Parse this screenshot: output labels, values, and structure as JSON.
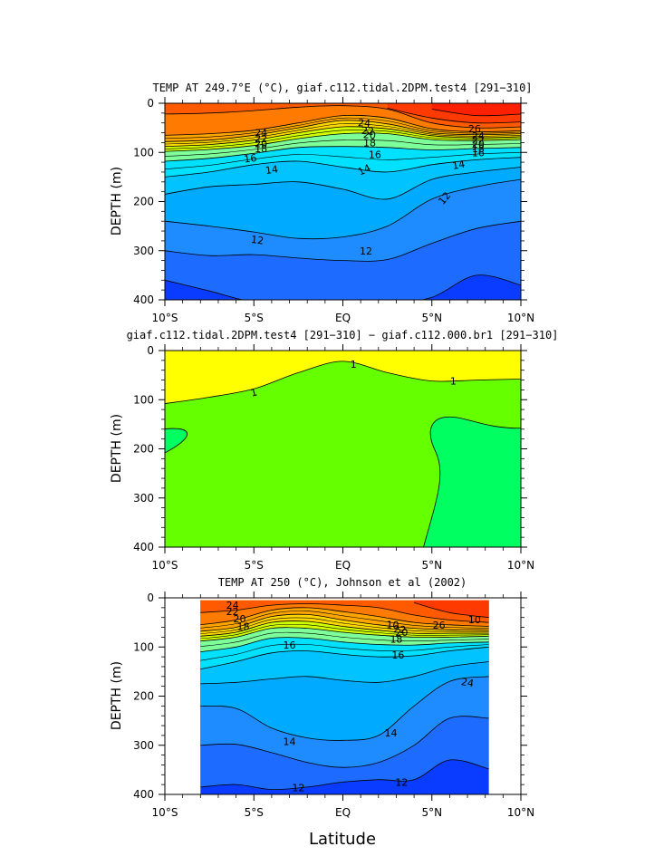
{
  "x_axis_label": "Latitude",
  "chart_data": [
    {
      "type": "heatmap",
      "title": "TEMP AT 249.7°E (°C), giaf.c112.tidal.2DPM.test4 [291−310]",
      "xlabel": "",
      "ylabel": "DEPTH (m)",
      "xlim": [
        -10,
        10
      ],
      "ylim": [
        400,
        0
      ],
      "x_ticks": [
        -10,
        -5,
        0,
        5,
        10
      ],
      "x_tick_labels": [
        "10°S",
        "5°S",
        "EQ",
        "5°N",
        "10°N"
      ],
      "y_ticks": [
        0,
        100,
        200,
        300,
        400
      ],
      "y_tick_labels": [
        "0",
        "100",
        "200",
        "300",
        "400"
      ],
      "grid": false,
      "legend": "none",
      "data_extent": [
        -10,
        10
      ],
      "levels": [
        10,
        11,
        12,
        13,
        14,
        15,
        16,
        17,
        18,
        19,
        20,
        21,
        22,
        23,
        24,
        25,
        26,
        27
      ],
      "colors": [
        "#0a3cff",
        "#1e6bff",
        "#1e8cff",
        "#00aaff",
        "#00c3ff",
        "#00e0ff",
        "#3cf0ff",
        "#7dff9a",
        "#a0ff3c",
        "#d2ff00",
        "#ffff00",
        "#ffd700",
        "#ffc000",
        "#ffa500",
        "#ff9020",
        "#ff7a00",
        "#ff5a00",
        "#ff3a00",
        "#ff2000"
      ],
      "x": [
        -10,
        -7.5,
        -5,
        -2.5,
        0,
        2.5,
        5,
        7.5,
        10
      ],
      "isotherm_depths": [
        {
          "t": 27,
          "depth": [
            null,
            null,
            null,
            null,
            null,
            null,
            12,
            25,
            22
          ]
        },
        {
          "t": 26,
          "depth": [
            null,
            null,
            null,
            null,
            null,
            10,
            30,
            40,
            38
          ]
        },
        {
          "t": 25,
          "depth": [
            22,
            20,
            15,
            8,
            5,
            12,
            40,
            50,
            48
          ]
        },
        {
          "t": 24,
          "depth": [
            65,
            62,
            55,
            40,
            25,
            30,
            52,
            58,
            56
          ]
        },
        {
          "t": 22,
          "depth": [
            78,
            75,
            65,
            50,
            35,
            42,
            60,
            64,
            62
          ]
        },
        {
          "t": 20,
          "depth": [
            88,
            84,
            75,
            60,
            48,
            52,
            66,
            70,
            68
          ]
        },
        {
          "t": 18,
          "depth": [
            98,
            94,
            86,
            72,
            62,
            62,
            74,
            76,
            74
          ]
        },
        {
          "t": 16,
          "depth": [
            118,
            112,
            102,
            90,
            88,
            90,
            95,
            92,
            90
          ]
        },
        {
          "t": 14,
          "depth": [
            150,
            140,
            125,
            118,
            130,
            140,
            125,
            115,
            110
          ]
        },
        {
          "t": 13,
          "depth": [
            185,
            170,
            165,
            160,
            175,
            195,
            155,
            140,
            130
          ]
        },
        {
          "t": 12,
          "depth": [
            240,
            250,
            262,
            275,
            272,
            250,
            195,
            170,
            155
          ]
        },
        {
          "t": 11,
          "depth": [
            300,
            310,
            308,
            315,
            320,
            318,
            285,
            255,
            240
          ]
        },
        {
          "t": 10,
          "depth": [
            360,
            382,
            405,
            410,
            410,
            408,
            395,
            350,
            370
          ]
        }
      ],
      "contour_labels": [
        "24",
        "22",
        "20",
        "18",
        "16",
        "14",
        "12",
        "24",
        "22",
        "20",
        "18",
        "16",
        "14",
        "12",
        "26",
        "24",
        "22",
        "20",
        "18",
        "16",
        "14",
        "12"
      ]
    },
    {
      "type": "heatmap",
      "title": "giaf.c112.tidal.2DPM.test4 [291−310] − giaf.c112.000.br1 [291−310]",
      "xlabel": "",
      "ylabel": "DEPTH (m)",
      "xlim": [
        -10,
        10
      ],
      "ylim": [
        400,
        0
      ],
      "x_ticks": [
        -10,
        -5,
        0,
        5,
        10
      ],
      "x_tick_labels": [
        "10°S",
        "5°S",
        "EQ",
        "5°N",
        "10°N"
      ],
      "y_ticks": [
        0,
        100,
        200,
        300,
        400
      ],
      "y_tick_labels": [
        "0",
        "100",
        "200",
        "300",
        "400"
      ],
      "grid": false,
      "legend": "none",
      "data_extent": [
        -10,
        10
      ],
      "levels": [
        -1,
        0,
        1
      ],
      "colors": [
        "#00ff60",
        "#66ff00",
        "#ffff00"
      ],
      "x": [
        -10,
        -7.5,
        -5,
        -2.5,
        0,
        2.5,
        5,
        7.5,
        10
      ],
      "diff_plus1_depth": [
        108,
        95,
        78,
        45,
        22,
        45,
        62,
        60,
        58
      ],
      "diff_minus1_region": {
        "left_lobe": {
          "depth_top": 160,
          "depth_bottom": 210,
          "lat_extent": -8.5
        },
        "right_region": {
          "lat_surface_boundary": [
            4.5,
            5.3,
            6.5,
            10
          ],
          "depth_top": 135
        }
      },
      "contour_labels": [
        "1",
        "1",
        "1"
      ]
    },
    {
      "type": "heatmap",
      "title": "TEMP AT 250 (°C), Johnson et al (2002)",
      "xlabel": "Latitude",
      "ylabel": "DEPTH (m)",
      "xlim": [
        -10,
        10
      ],
      "ylim": [
        400,
        0
      ],
      "x_ticks": [
        -10,
        -5,
        0,
        5,
        10
      ],
      "x_tick_labels": [
        "10°S",
        "5°S",
        "EQ",
        "5°N",
        "10°N"
      ],
      "y_ticks": [
        0,
        100,
        200,
        300,
        400
      ],
      "y_tick_labels": [
        "0",
        "100",
        "200",
        "300",
        "400"
      ],
      "grid": false,
      "legend": "none",
      "data_extent": [
        -8,
        8.2
      ],
      "depth_extent": [
        5,
        405
      ],
      "levels": [
        10,
        11,
        12,
        13,
        14,
        15,
        16,
        17,
        18,
        19,
        20,
        21,
        22,
        23,
        24,
        25,
        26,
        27
      ],
      "colors": [
        "#0a3cff",
        "#1e6bff",
        "#1e8cff",
        "#00aaff",
        "#00c3ff",
        "#00e0ff",
        "#3cf0ff",
        "#7dff9a",
        "#a0ff3c",
        "#d2ff00",
        "#ffff00",
        "#ffd700",
        "#ffc000",
        "#ffa500",
        "#ff9020",
        "#ff7a00",
        "#ff5a00",
        "#ff3a00",
        "#ff2000"
      ],
      "x": [
        -8,
        -6,
        -4,
        -2,
        0,
        2,
        4,
        6,
        8.2
      ],
      "isotherm_depths": [
        {
          "t": 26,
          "depth": [
            null,
            null,
            null,
            null,
            null,
            null,
            10,
            30,
            40
          ]
        },
        {
          "t": 25,
          "depth": [
            30,
            25,
            15,
            12,
            15,
            20,
            35,
            45,
            50
          ]
        },
        {
          "t": 24,
          "depth": [
            55,
            45,
            25,
            20,
            28,
            38,
            50,
            55,
            58
          ]
        },
        {
          "t": 22,
          "depth": [
            68,
            60,
            38,
            34,
            45,
            55,
            62,
            65,
            66
          ]
        },
        {
          "t": 20,
          "depth": [
            78,
            70,
            50,
            48,
            58,
            66,
            72,
            72,
            72
          ]
        },
        {
          "t": 18,
          "depth": [
            88,
            80,
            62,
            62,
            70,
            76,
            80,
            80,
            78
          ]
        },
        {
          "t": 16,
          "depth": [
            110,
            100,
            82,
            82,
            90,
            95,
            96,
            92,
            90
          ]
        },
        {
          "t": 14,
          "depth": [
            145,
            130,
            112,
            108,
            115,
            120,
            118,
            108,
            100
          ]
        },
        {
          "t": 13,
          "depth": [
            175,
            172,
            165,
            160,
            168,
            172,
            160,
            140,
            130
          ]
        },
        {
          "t": 12,
          "depth": [
            220,
            225,
            265,
            285,
            290,
            280,
            220,
            170,
            160
          ]
        },
        {
          "t": 11,
          "depth": [
            300,
            298,
            315,
            335,
            345,
            335,
            300,
            245,
            245
          ]
        },
        {
          "t": 10,
          "depth": [
            385,
            380,
            390,
            385,
            375,
            370,
            370,
            330,
            348
          ]
        }
      ],
      "contour_labels": [
        "24",
        "22",
        "20",
        "18",
        "16",
        "14",
        "12",
        "10",
        "22",
        "20",
        "18",
        "16",
        "14",
        "12",
        "10",
        "26",
        "24",
        "12"
      ]
    }
  ]
}
